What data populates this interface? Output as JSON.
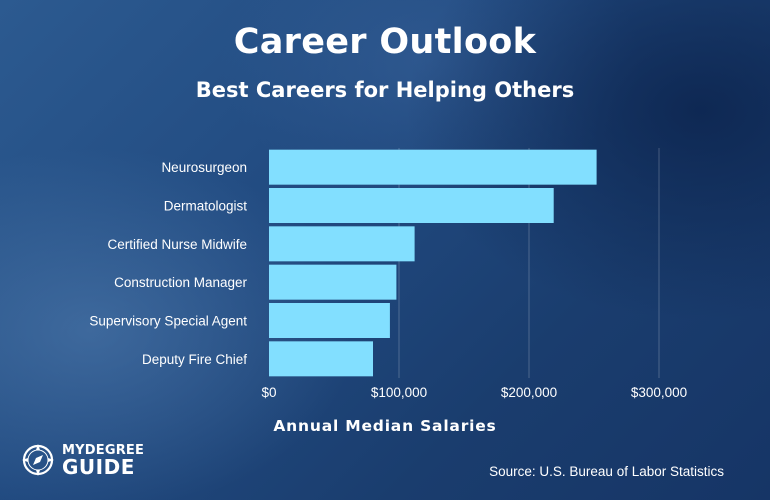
{
  "header": {
    "title": "Career Outlook",
    "subtitle": "Best Careers for Helping Others"
  },
  "chart_data": {
    "type": "bar",
    "orientation": "horizontal",
    "categories": [
      "Neurosurgeon",
      "Dermatologist",
      "Certified Nurse Midwife",
      "Construction Manager",
      "Supervisory Special Agent",
      "Deputy Fire Chief"
    ],
    "values": [
      252000,
      219000,
      112000,
      98000,
      93000,
      80000
    ],
    "xlim": [
      0,
      300000
    ],
    "ticks": [
      0,
      100000,
      200000,
      300000
    ],
    "tick_labels": [
      "$0",
      "$100,000",
      "$200,000",
      "$300,000"
    ],
    "xlabel": "Annual Median Salaries",
    "grid": "vertical",
    "bar_color": "#82dfff"
  },
  "footer": {
    "logo": "MYDEGREE GUIDE",
    "logo_icon": "compass-icon",
    "logo_top": "MYDEGREE",
    "logo_bottom": "GUIDE",
    "source": "Source: U.S. Bureau of Labor Statistics"
  }
}
